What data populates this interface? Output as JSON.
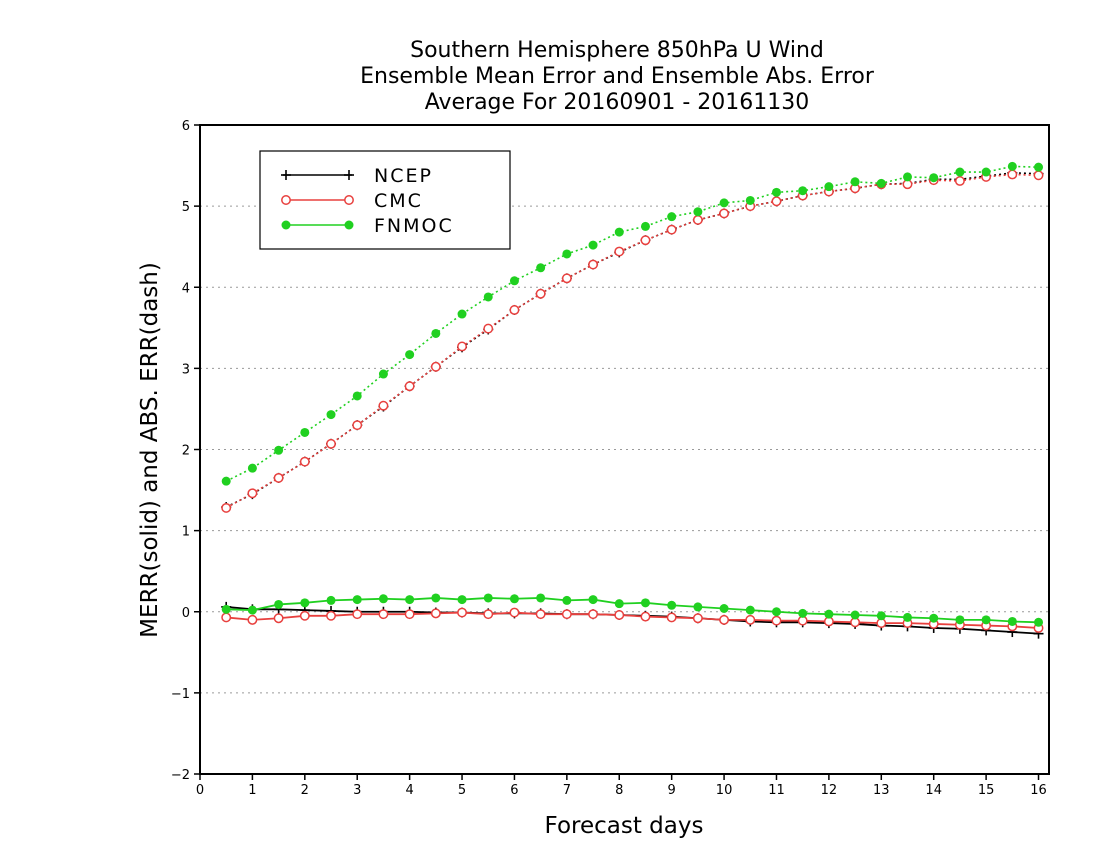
{
  "chart_data": {
    "type": "line",
    "title_lines": [
      "Southern Hemisphere 850hPa U Wind",
      "Ensemble Mean Error and Ensemble Abs. Error",
      "Average For 20160901 - 20161130"
    ],
    "xlabel": "Forecast days",
    "ylabel": "MERR(solid) and ABS. ERR(dash)",
    "xlim": [
      0,
      16.2
    ],
    "ylim": [
      -2,
      6
    ],
    "xticks": [
      0,
      1,
      2,
      3,
      4,
      5,
      6,
      7,
      8,
      9,
      10,
      11,
      12,
      13,
      14,
      15,
      16
    ],
    "yticks": [
      -2,
      -1,
      0,
      1,
      2,
      3,
      4,
      5,
      6
    ],
    "ytick_labels": [
      "−2",
      "−1",
      "0",
      "1",
      "2",
      "3",
      "4",
      "5",
      "6"
    ],
    "grid": "horizontal dotted",
    "legend_position": "top-left",
    "x": [
      0.5,
      1,
      1.5,
      2,
      2.5,
      3,
      3.5,
      4,
      4.5,
      5,
      5.5,
      6,
      6.5,
      7,
      7.5,
      8,
      8.5,
      9,
      9.5,
      10,
      10.5,
      11,
      11.5,
      12,
      12.5,
      13,
      13.5,
      14,
      14.5,
      15,
      15.5,
      16
    ],
    "series": [
      {
        "name": "NCEP",
        "color": "#000000",
        "marker": "plus",
        "merr": [
          0.06,
          0.03,
          0.03,
          0.02,
          0.01,
          0.0,
          0.0,
          0.0,
          -0.01,
          -0.01,
          -0.02,
          -0.02,
          -0.02,
          -0.03,
          -0.03,
          -0.04,
          -0.05,
          -0.06,
          -0.08,
          -0.1,
          -0.12,
          -0.13,
          -0.13,
          -0.14,
          -0.15,
          -0.17,
          -0.18,
          -0.2,
          -0.21,
          -0.23,
          -0.25,
          -0.27
        ],
        "abs_err": [
          1.29,
          1.45,
          1.65,
          1.85,
          2.07,
          2.3,
          2.53,
          2.78,
          3.02,
          3.26,
          3.48,
          3.72,
          3.92,
          4.11,
          4.28,
          4.43,
          4.58,
          4.71,
          4.83,
          4.91,
          5.0,
          5.06,
          5.13,
          5.18,
          5.22,
          5.27,
          5.28,
          5.33,
          5.33,
          5.37,
          5.41,
          5.4
        ]
      },
      {
        "name": "CMC",
        "color": "#e8403e",
        "marker": "open-circle",
        "merr": [
          -0.07,
          -0.1,
          -0.08,
          -0.05,
          -0.05,
          -0.03,
          -0.03,
          -0.03,
          -0.02,
          -0.01,
          -0.03,
          -0.01,
          -0.03,
          -0.03,
          -0.03,
          -0.04,
          -0.06,
          -0.07,
          -0.08,
          -0.1,
          -0.1,
          -0.11,
          -0.11,
          -0.12,
          -0.13,
          -0.14,
          -0.14,
          -0.15,
          -0.16,
          -0.17,
          -0.18,
          -0.2
        ],
        "abs_err": [
          1.28,
          1.46,
          1.65,
          1.85,
          2.07,
          2.3,
          2.54,
          2.78,
          3.02,
          3.27,
          3.49,
          3.72,
          3.92,
          4.11,
          4.28,
          4.44,
          4.58,
          4.71,
          4.83,
          4.91,
          5.0,
          5.06,
          5.13,
          5.18,
          5.22,
          5.27,
          5.27,
          5.32,
          5.31,
          5.36,
          5.39,
          5.38
        ]
      },
      {
        "name": "FNMOC",
        "color": "#20d020",
        "marker": "filled-circle",
        "merr": [
          0.03,
          0.02,
          0.09,
          0.11,
          0.14,
          0.15,
          0.16,
          0.15,
          0.17,
          0.15,
          0.17,
          0.16,
          0.17,
          0.14,
          0.15,
          0.1,
          0.11,
          0.08,
          0.06,
          0.04,
          0.02,
          0.0,
          -0.02,
          -0.03,
          -0.04,
          -0.05,
          -0.07,
          -0.08,
          -0.1,
          -0.1,
          -0.12,
          -0.13
        ],
        "abs_err": [
          1.61,
          1.77,
          1.99,
          2.21,
          2.43,
          2.66,
          2.93,
          3.17,
          3.43,
          3.67,
          3.88,
          4.08,
          4.24,
          4.41,
          4.52,
          4.68,
          4.75,
          4.87,
          4.93,
          5.04,
          5.07,
          5.17,
          5.19,
          5.24,
          5.3,
          5.28,
          5.36,
          5.35,
          5.42,
          5.42,
          5.49,
          5.48
        ]
      }
    ]
  }
}
